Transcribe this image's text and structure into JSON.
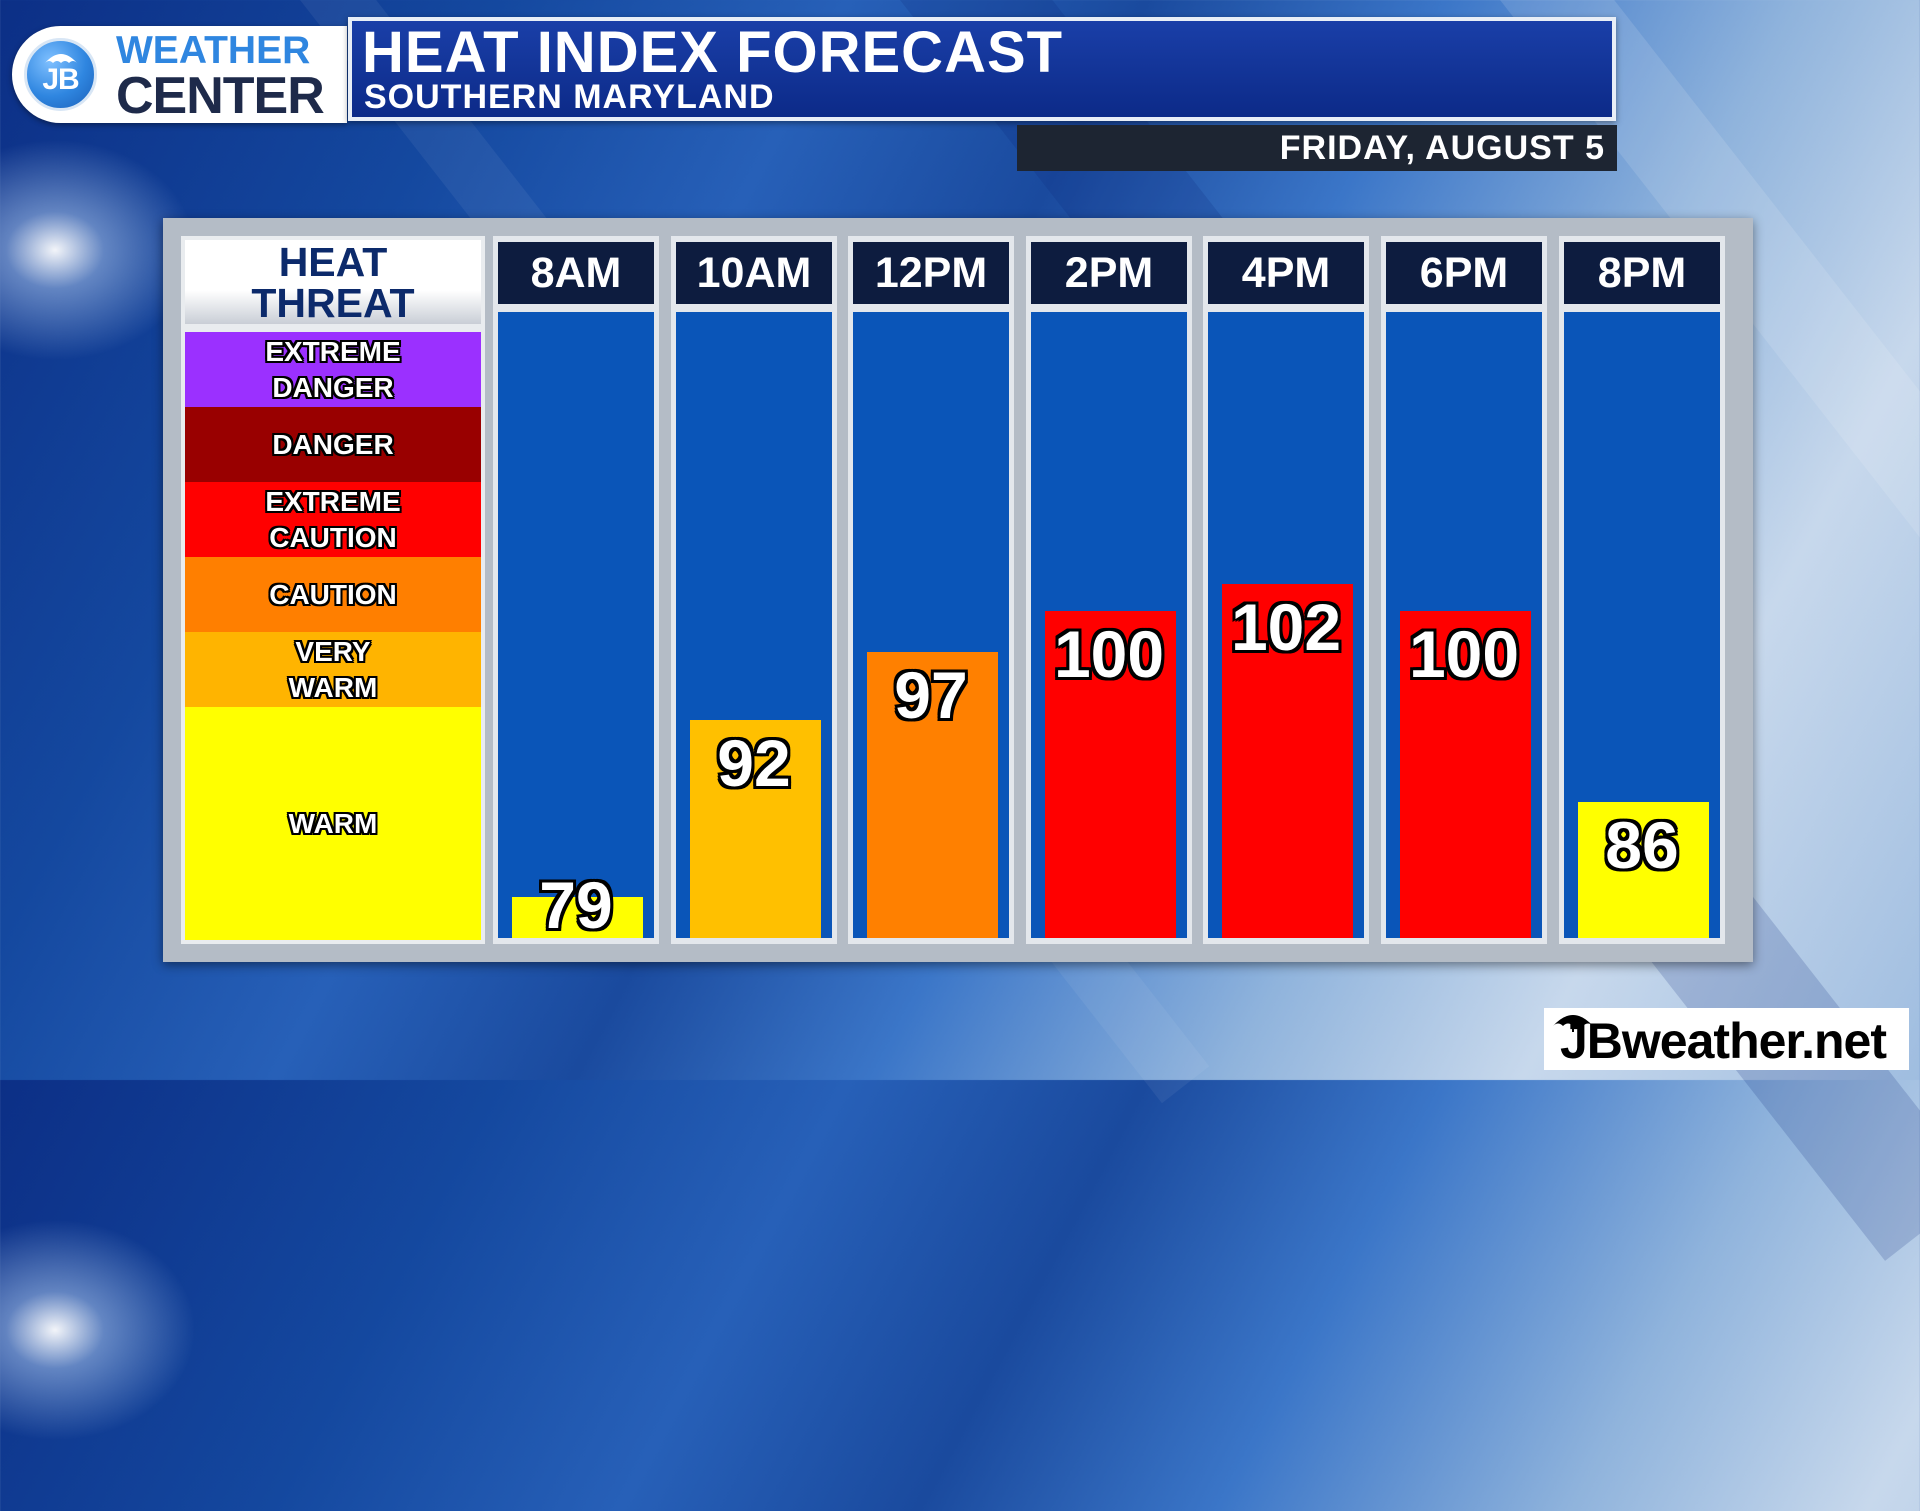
{
  "logo": {
    "badge": "JB",
    "line1": "WEATHER",
    "line2": "CENTER"
  },
  "header": {
    "title": "HEAT INDEX FORECAST",
    "subtitle": "SOUTHERN MARYLAND",
    "date": "FRIDAY, AUGUST 5"
  },
  "legend": {
    "title": "HEAT\nTHREAT",
    "bands": [
      {
        "label": "EXTREME\nDANGER",
        "color": "#9b30ff"
      },
      {
        "label": "DANGER",
        "color": "#990000"
      },
      {
        "label": "EXTREME\nCAUTION",
        "color": "#ff0000"
      },
      {
        "label": "CAUTION",
        "color": "#ff7f00"
      },
      {
        "label": "VERY\nWARM",
        "color": "#ffb400"
      },
      {
        "label": "WARM",
        "color": "#ffff00"
      }
    ]
  },
  "chart_data": {
    "type": "bar",
    "title": "HEAT INDEX FORECAST",
    "subtitle": "SOUTHERN MARYLAND",
    "categories": [
      "8AM",
      "10AM",
      "12PM",
      "2PM",
      "4PM",
      "6PM",
      "8PM"
    ],
    "values": [
      79,
      92,
      97,
      100,
      102,
      100,
      86
    ],
    "colors": [
      "#ffff00",
      "#ffc000",
      "#ff8000",
      "#ff0000",
      "#ff0000",
      "#ff0000",
      "#ffff00"
    ],
    "ylim": [
      76,
      122
    ],
    "grid": false,
    "legend": "left"
  },
  "footer": {
    "brand": "JBweather.net"
  }
}
